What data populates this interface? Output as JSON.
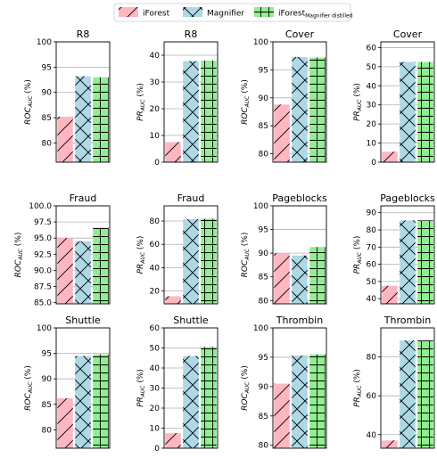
{
  "legend": {
    "placement": "top-center",
    "entries": [
      {
        "label": "iForest",
        "sub": "",
        "color": "#ffb6c1",
        "hatch": "diag"
      },
      {
        "label": "Magnifier",
        "sub": "",
        "color": "#add8e6",
        "hatch": "cross"
      },
      {
        "label": "iForest",
        "sub": "Magnifier distilled",
        "color": "#90ee90",
        "hatch": "grid"
      }
    ]
  },
  "chart_data": [
    {
      "type": "bar",
      "title": "R8",
      "ylabel": "ROC",
      "ylabel_sub": "AUC",
      "ylabel_unit": " (%)",
      "values": [
        85.2,
        93.2,
        93.0
      ],
      "ylim": [
        76.2,
        100
      ],
      "yticks": [
        80,
        85,
        90,
        95,
        100
      ],
      "grid": true
    },
    {
      "type": "bar",
      "title": "R8",
      "ylabel": "PR",
      "ylabel_sub": "AUC",
      "ylabel_unit": " (%)",
      "values": [
        7.5,
        37.8,
        38.0
      ],
      "ylim": [
        0,
        45
      ],
      "yticks": [
        0,
        10,
        20,
        30,
        40
      ],
      "grid": true
    },
    {
      "type": "bar",
      "title": "Cover",
      "ylabel": "ROC",
      "ylabel_sub": "AUC",
      "ylabel_unit": " (%)",
      "values": [
        88.8,
        97.3,
        97.2
      ],
      "ylim": [
        78.5,
        100
      ],
      "yticks": [
        80,
        85,
        90,
        95,
        100
      ],
      "grid": true
    },
    {
      "type": "bar",
      "title": "Cover",
      "ylabel": "PR",
      "ylabel_sub": "AUC",
      "ylabel_unit": " (%)",
      "values": [
        5.5,
        52.5,
        52.5
      ],
      "ylim": [
        0,
        63
      ],
      "yticks": [
        0,
        10,
        20,
        30,
        40,
        50,
        60
      ],
      "grid": true
    },
    {
      "type": "bar",
      "title": "Fraud",
      "ylabel": "ROC",
      "ylabel_sub": "AUC",
      "ylabel_unit": " (%)",
      "values": [
        95.0,
        94.5,
        96.6
      ],
      "ylim": [
        84.8,
        100
      ],
      "yticks": [
        85.0,
        87.5,
        90.0,
        92.5,
        95.0,
        97.5,
        100.0
      ],
      "grid": true
    },
    {
      "type": "bar",
      "title": "Fraud",
      "ylabel": "PR",
      "ylabel_sub": "AUC",
      "ylabel_unit": " (%)",
      "values": [
        15.5,
        81.5,
        82.0
      ],
      "ylim": [
        9,
        93
      ],
      "yticks": [
        20,
        40,
        60,
        80
      ],
      "grid": true
    },
    {
      "type": "bar",
      "title": "Pageblocks",
      "ylabel": "ROC",
      "ylabel_sub": "AUC",
      "ylabel_unit": " (%)",
      "values": [
        90.0,
        89.5,
        91.3
      ],
      "ylim": [
        79.3,
        100
      ],
      "yticks": [
        80,
        85,
        90,
        95,
        100
      ],
      "grid": true
    },
    {
      "type": "bar",
      "title": "Pageblocks",
      "ylabel": "PR",
      "ylabel_sub": "AUC",
      "ylabel_unit": " (%)",
      "values": [
        47.5,
        85.5,
        85.5
      ],
      "ylim": [
        37,
        94
      ],
      "yticks": [
        40,
        50,
        60,
        70,
        80,
        90
      ],
      "grid": true
    },
    {
      "type": "bar",
      "title": "Shuttle",
      "ylabel": "ROC",
      "ylabel_sub": "AUC",
      "ylabel_unit": " (%)",
      "values": [
        86.2,
        94.5,
        94.8
      ],
      "ylim": [
        76.4,
        100
      ],
      "yticks": [
        80,
        85,
        90,
        95,
        100
      ],
      "grid": true
    },
    {
      "type": "bar",
      "title": "Shuttle",
      "ylabel": "PR",
      "ylabel_sub": "AUC",
      "ylabel_unit": " (%)",
      "values": [
        7.5,
        46.0,
        50.5
      ],
      "ylim": [
        0,
        60
      ],
      "yticks": [
        0,
        10,
        20,
        30,
        40,
        50,
        60
      ],
      "grid": true
    },
    {
      "type": "bar",
      "title": "Thrombin",
      "ylabel": "ROC",
      "ylabel_sub": "AUC",
      "ylabel_unit": " (%)",
      "values": [
        90.5,
        95.3,
        95.5
      ],
      "ylim": [
        79.5,
        100
      ],
      "yticks": [
        80,
        85,
        90,
        95,
        100
      ],
      "grid": true
    },
    {
      "type": "bar",
      "title": "Thrombin",
      "ylabel": "PR",
      "ylabel_sub": "AUC",
      "ylabel_unit": " (%)",
      "values": [
        37.0,
        88.5,
        88.5
      ],
      "ylim": [
        33,
        95
      ],
      "yticks": [
        40,
        60,
        80
      ],
      "grid": true
    }
  ]
}
